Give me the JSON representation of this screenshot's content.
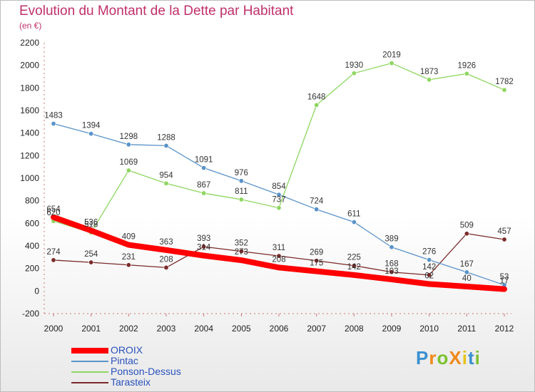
{
  "title": "Evolution du Montant de la Dette par Habitant",
  "unit": "(en €)",
  "logo": {
    "text": "ProXiti",
    "colors": [
      "#3a8fd0",
      "#f08a1a",
      "#7cc230",
      "#f08a1a",
      "#e6c21a",
      "#3a8fd0",
      "#7cc230"
    ]
  },
  "chart_data": {
    "type": "line",
    "x": [
      2000,
      2001,
      2002,
      2003,
      2004,
      2005,
      2006,
      2007,
      2008,
      2009,
      2010,
      2011,
      2012
    ],
    "ylim": [
      -200,
      2200
    ],
    "yticks": [
      -200,
      0,
      200,
      400,
      600,
      800,
      1000,
      1200,
      1400,
      1600,
      1800,
      2000,
      2200
    ],
    "grid": false,
    "legend": "bottom-left",
    "series": [
      {
        "name": "Tarasteix",
        "color": "#7b2a2a",
        "width": 1.3,
        "marker": true,
        "values": [
          274,
          254,
          231,
          208,
          393,
          352,
          311,
          269,
          225,
          168,
          142,
          509,
          457
        ],
        "labels": [
          "274",
          "254",
          "231",
          "208",
          "393",
          "352",
          "311",
          "269",
          "225",
          "168",
          "142",
          "509",
          "457"
        ]
      },
      {
        "name": "Ponson-Dessus",
        "color": "#8ed660",
        "width": 1.3,
        "marker": true,
        "values": [
          620,
          518,
          1069,
          954,
          867,
          811,
          737,
          1648,
          1930,
          2019,
          1873,
          1926,
          1782
        ],
        "labels": [
          "620",
          "518",
          "1069",
          "954",
          "867",
          "811",
          "737",
          "1648",
          "1930",
          "2019",
          "1873",
          "1926",
          "1782"
        ]
      },
      {
        "name": "Pintac",
        "color": "#5a93c9",
        "width": 1.3,
        "marker": true,
        "values": [
          1483,
          1394,
          1298,
          1288,
          1091,
          976,
          854,
          724,
          611,
          389,
          276,
          167,
          53
        ],
        "labels": [
          "1483",
          "1394",
          "1298",
          "1288",
          "1091",
          "976",
          "854",
          "724",
          "611",
          "389",
          "276",
          "167",
          "53"
        ]
      },
      {
        "name": "OROIX",
        "color": "#ff0000",
        "width": 8,
        "marker": false,
        "values": [
          654,
          536,
          409,
          363,
          314,
          273,
          208,
          175,
          142,
          103,
          62,
          40,
          17
        ],
        "labels": [
          "654",
          "536",
          "409",
          "363",
          "314",
          "273",
          "208",
          "175",
          "142",
          "103",
          "62",
          "40",
          "17"
        ]
      }
    ],
    "legend_order": [
      "OROIX",
      "Pintac",
      "Ponson-Dessus",
      "Tarasteix"
    ]
  }
}
